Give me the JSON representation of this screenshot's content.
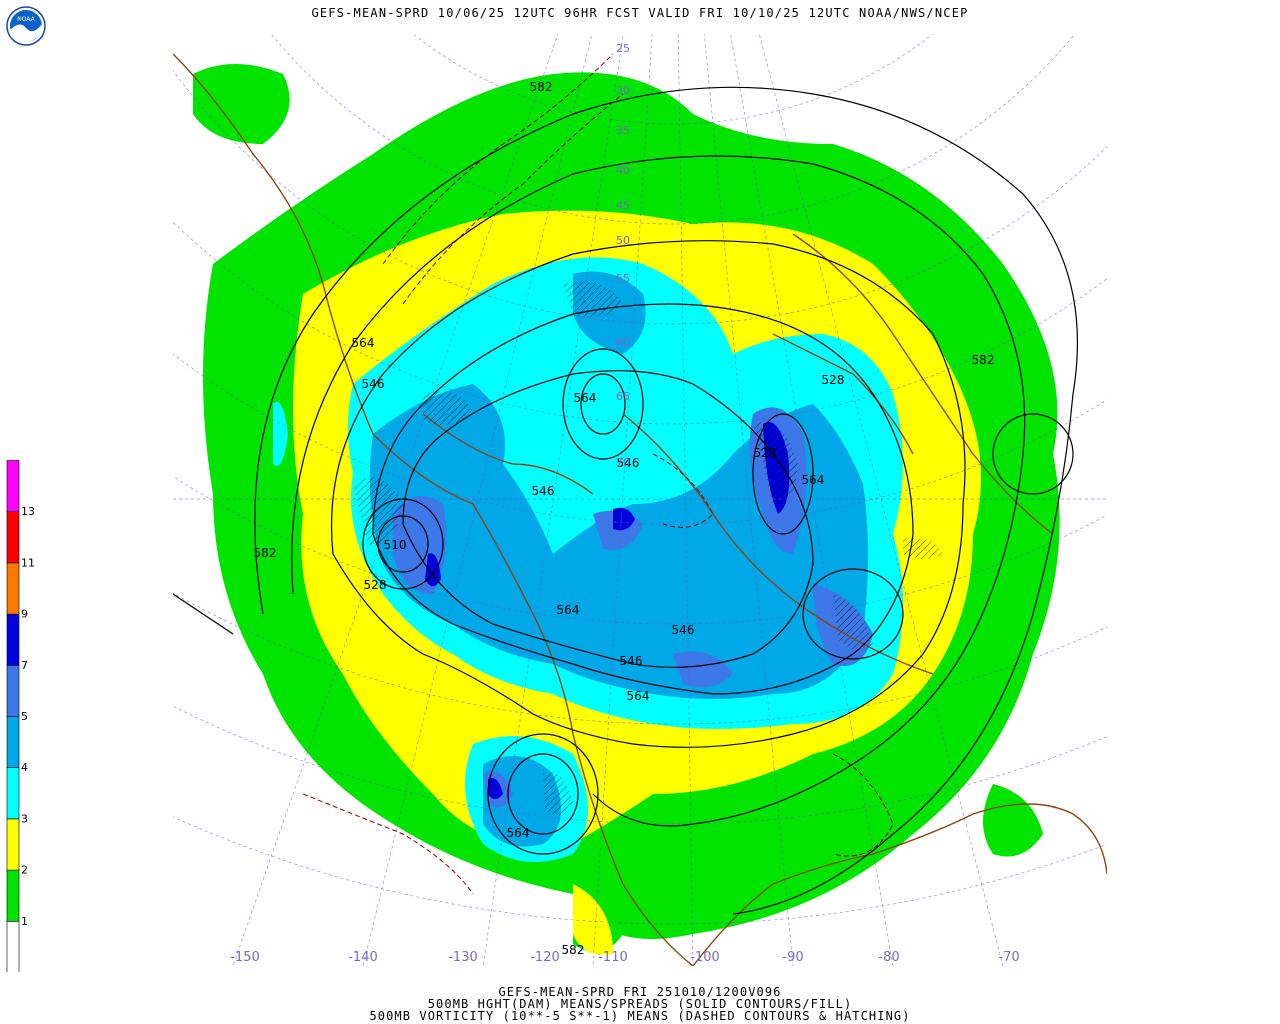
{
  "header": {
    "title": "GEFS-MEAN-SPRD 10/06/25 12UTC 96HR FCST VALID FRI 10/10/25 12UTC NOAA/NWS/NCEP"
  },
  "logo": {
    "text": "NOAA",
    "icon": "noaa-logo-icon"
  },
  "map": {
    "contour_labels": [
      "582",
      "564",
      "546",
      "582",
      "546",
      "564",
      "546",
      "528",
      "510",
      "528",
      "564",
      "546",
      "564",
      "582",
      "564",
      "528",
      "546",
      "564",
      "582"
    ],
    "latitude_labels": [
      "25",
      "30",
      "35",
      "40",
      "45",
      "50",
      "55",
      "60",
      "65",
      "70"
    ],
    "longitude_labels": [
      "-150",
      "-140",
      "-130",
      "-120",
      "-110",
      "-100",
      "-90",
      "-80",
      "-70"
    ]
  },
  "legend": {
    "labels": [
      "1",
      "2",
      "3",
      "4",
      "5",
      "7",
      "9",
      "11",
      "13"
    ],
    "colors": [
      "#ffffff",
      "#00e400",
      "#ffff00",
      "#00ffff",
      "#00a8e8",
      "#3c78e8",
      "#0000dc",
      "#ff7800",
      "#ff0000",
      "#ff00ff"
    ]
  },
  "footer": {
    "line1": "GEFS-MEAN-SPRD FRI 251010/1200V096",
    "line2": "500MB HGHT(DAM) MEANS/SPREADS (SOLID CONTOURS/FILL)",
    "line3": "500MB VORTICITY (10**-5 S**-1) MEANS (DASHED CONTOURS & HATCHING)"
  }
}
